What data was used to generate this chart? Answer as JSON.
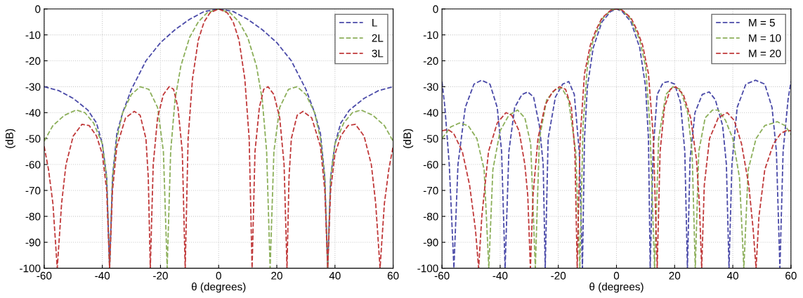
{
  "chart_data": [
    {
      "type": "line",
      "xlabel": "θ (degrees)",
      "ylabel": "(dB)",
      "xlim": [
        -60,
        60
      ],
      "xticks": [
        -60,
        -40,
        -20,
        0,
        20,
        40,
        60
      ],
      "ylim": [
        -100,
        0
      ],
      "yticks": [
        -100,
        -90,
        -80,
        -70,
        -60,
        -50,
        -40,
        -30,
        -20,
        -10,
        0
      ],
      "grid": true,
      "legend": "top right",
      "line_style": "dashed",
      "marker": "none",
      "series": [
        {
          "name": "L",
          "color": "#4a4aa8",
          "x": [
            -60,
            -55,
            -50,
            -45,
            -42,
            -40,
            -38.5,
            -37.5,
            -36.5,
            -35,
            -33,
            -30,
            -25,
            -20,
            -15,
            -10,
            -5,
            0,
            5,
            10,
            15,
            20,
            25,
            30,
            33,
            35,
            36.5,
            37.5,
            38.5,
            40,
            42,
            45,
            50,
            55,
            60
          ],
          "values": [
            -30,
            -31.5,
            -34.5,
            -39,
            -44,
            -52,
            -65,
            -100,
            -65,
            -48,
            -40,
            -31,
            -20,
            -13,
            -8,
            -4,
            -1,
            0,
            -1,
            -4,
            -8,
            -13,
            -20,
            -31,
            -40,
            -48,
            -65,
            -100,
            -65,
            -52,
            -44,
            -39,
            -34.5,
            -31.5,
            -30
          ]
        },
        {
          "name": "2L",
          "color": "#8caf5a",
          "x": [
            -60,
            -57,
            -53,
            -49,
            -46,
            -43,
            -40,
            -38.5,
            -37.5,
            -36.5,
            -35,
            -33,
            -30,
            -27,
            -24,
            -21,
            -19,
            -17.7,
            -16.5,
            -15,
            -13,
            -10,
            -7,
            -4,
            0,
            4,
            7,
            10,
            13,
            15,
            16.5,
            17.7,
            19,
            21,
            24,
            27,
            30,
            33,
            35,
            36.5,
            37.5,
            38.5,
            40,
            43,
            46,
            49,
            53,
            57,
            60
          ],
          "values": [
            -51,
            -45,
            -41,
            -39,
            -40,
            -44,
            -52,
            -65,
            -100,
            -65,
            -50,
            -40,
            -33,
            -30,
            -31,
            -38,
            -55,
            -100,
            -55,
            -35,
            -22,
            -11,
            -5,
            -1.5,
            0,
            -1.5,
            -5,
            -11,
            -22,
            -35,
            -55,
            -100,
            -55,
            -38,
            -31,
            -30,
            -33,
            -40,
            -50,
            -65,
            -100,
            -65,
            -52,
            -44,
            -40,
            -39,
            -41,
            -45,
            -51
          ]
        },
        {
          "name": "3L",
          "color": "#c0393a",
          "x": [
            -60,
            -58.5,
            -57,
            -55.5,
            -54,
            -52.5,
            -50,
            -47,
            -44.5,
            -42,
            -40,
            -38.5,
            -37.5,
            -36.5,
            -35,
            -32,
            -29,
            -27,
            -25,
            -24.2,
            -23.5,
            -22.5,
            -21,
            -19,
            -17,
            -15.5,
            -14,
            -12.5,
            -11.5,
            -10.5,
            -9,
            -7,
            -5,
            -3,
            0,
            3,
            5,
            7,
            9,
            10.5,
            11.5,
            12.5,
            14,
            15.5,
            17,
            19,
            21,
            22.5,
            23.5,
            24.2,
            25,
            27,
            29,
            32,
            35,
            36.5,
            37.5,
            38.5,
            40,
            42,
            44.5,
            47,
            50,
            52.5,
            54,
            55.5,
            57,
            58.5,
            60
          ],
          "values": [
            -53,
            -62,
            -75,
            -100,
            -75,
            -60,
            -49,
            -44.5,
            -45,
            -49,
            -56,
            -70,
            -100,
            -70,
            -53,
            -42,
            -39.5,
            -41,
            -50,
            -65,
            -100,
            -60,
            -42,
            -33,
            -30,
            -31,
            -38,
            -55,
            -100,
            -50,
            -27,
            -12,
            -5,
            -1.5,
            0,
            -1.5,
            -5,
            -12,
            -27,
            -50,
            -100,
            -55,
            -38,
            -31,
            -30,
            -33,
            -42,
            -60,
            -100,
            -65,
            -50,
            -41,
            -39.5,
            -42,
            -53,
            -70,
            -100,
            -70,
            -56,
            -49,
            -45,
            -44.5,
            -49,
            -60,
            -75,
            -100,
            -75,
            -62,
            -53
          ]
        }
      ]
    },
    {
      "type": "line",
      "xlabel": "θ (degrees)",
      "ylabel": "(dB)",
      "xlim": [
        -60,
        60
      ],
      "xticks": [
        -60,
        -40,
        -20,
        0,
        20,
        40,
        60
      ],
      "ylim": [
        -100,
        0
      ],
      "yticks": [
        -100,
        -90,
        -80,
        -70,
        -60,
        -50,
        -40,
        -30,
        -20,
        -10,
        0
      ],
      "grid": true,
      "legend": "top right",
      "line_style": "dashed",
      "marker": "none",
      "series": [
        {
          "name": "M = 5",
          "color": "#4a4aa8",
          "x": [
            -60,
            -59,
            -57.5,
            -55.9,
            -54.5,
            -52,
            -49,
            -46.4,
            -43.5,
            -41,
            -39.5,
            -38.3,
            -37,
            -35,
            -32.5,
            -30.5,
            -28.5,
            -26.5,
            -25.2,
            -24.5,
            -23.5,
            -21,
            -18.5,
            -16.4,
            -14.5,
            -12.8,
            -11.7,
            -11,
            -10,
            -8,
            -5,
            -2,
            0,
            2,
            5,
            8,
            10,
            11,
            11.6,
            12.6,
            14,
            16,
            17.8,
            20,
            22,
            23.5,
            24.4,
            25.3,
            27,
            29.5,
            31.9,
            34,
            36.5,
            37.8,
            38.7,
            39.7,
            41.5,
            44.5,
            47.8,
            51,
            53.5,
            55,
            56.2,
            57.3,
            59,
            60
          ],
          "values": [
            -28,
            -38,
            -60,
            -100,
            -60,
            -38,
            -29,
            -27.5,
            -29,
            -38,
            -55,
            -100,
            -55,
            -38,
            -33,
            -32,
            -34,
            -45,
            -60,
            -100,
            -50,
            -34,
            -29,
            -28,
            -33,
            -55,
            -100,
            -50,
            -30,
            -15,
            -5,
            -1,
            0,
            -1,
            -5,
            -15,
            -30,
            -50,
            -100,
            -55,
            -33,
            -28.5,
            -28,
            -29,
            -36,
            -55,
            -100,
            -58,
            -40,
            -33,
            -32,
            -35,
            -45,
            -60,
            -100,
            -60,
            -38,
            -29,
            -27.5,
            -29,
            -38,
            -55,
            -100,
            -55,
            -35,
            -28
          ]
        },
        {
          "name": "M = 10",
          "color": "#8caf5a",
          "x": [
            -60,
            -57,
            -54,
            -51,
            -48,
            -45.5,
            -43.9,
            -42.5,
            -40,
            -37,
            -34,
            -31.5,
            -29.5,
            -27.9,
            -26.5,
            -24,
            -21,
            -18.8,
            -16.5,
            -14,
            -12.6,
            -11.5,
            -10,
            -8,
            -5,
            -2,
            0,
            2,
            5,
            8,
            10,
            11.5,
            13.1,
            14.5,
            17,
            19.4,
            22,
            24.5,
            26,
            27.1,
            28.3,
            30.5,
            33,
            35,
            37.5,
            40,
            42.3,
            43.8,
            45.3,
            48,
            51,
            55.3,
            58,
            60
          ],
          "values": [
            -50,
            -45.5,
            -44,
            -45,
            -50,
            -62,
            -100,
            -62,
            -47,
            -41,
            -39,
            -42,
            -52,
            -100,
            -50,
            -35,
            -31,
            -30.5,
            -35,
            -55,
            -100,
            -45,
            -22,
            -12,
            -4,
            -0.5,
            0,
            -0.5,
            -4,
            -12,
            -22,
            -45,
            -100,
            -50,
            -33,
            -30,
            -31,
            -40,
            -55,
            -100,
            -55,
            -42,
            -39,
            -39,
            -43,
            -50,
            -65,
            -100,
            -62,
            -50,
            -45,
            -43.5,
            -45,
            -48.5
          ]
        },
        {
          "name": "M = 20",
          "color": "#c0393a",
          "x": [
            -60,
            -58,
            -56,
            -53,
            -50.5,
            -48.5,
            -47.4,
            -46.3,
            -44,
            -41,
            -38,
            -36,
            -33.5,
            -31.5,
            -30.5,
            -29.6,
            -28.7,
            -27,
            -24.5,
            -22,
            -19.6,
            -17.5,
            -15.5,
            -14.3,
            -13.5,
            -12.5,
            -11,
            -9,
            -7,
            -5,
            -2,
            0,
            2,
            5,
            7,
            9,
            11,
            12.7,
            14,
            15,
            16.5,
            18.5,
            20.4,
            23,
            25.5,
            27.5,
            28.5,
            29.3,
            30.2,
            32,
            35,
            38.1,
            40.5,
            43,
            45.5,
            47,
            48,
            49,
            51,
            54,
            56.5,
            58.8,
            60
          ],
          "values": [
            -47,
            -46.5,
            -48,
            -55,
            -68,
            -85,
            -100,
            -80,
            -55,
            -44,
            -40,
            -41,
            -47,
            -60,
            -72,
            -100,
            -72,
            -50,
            -37,
            -32,
            -30,
            -31,
            -38,
            -55,
            -100,
            -50,
            -25,
            -14,
            -8,
            -3.5,
            -0.5,
            0,
            -0.5,
            -3.5,
            -8,
            -14,
            -25,
            -50,
            -100,
            -55,
            -38,
            -31,
            -30,
            -33,
            -42,
            -58,
            -75,
            -100,
            -68,
            -50,
            -42,
            -40,
            -43,
            -52,
            -68,
            -85,
            -100,
            -80,
            -62,
            -52,
            -48,
            -46.7,
            -47
          ]
        }
      ]
    }
  ]
}
